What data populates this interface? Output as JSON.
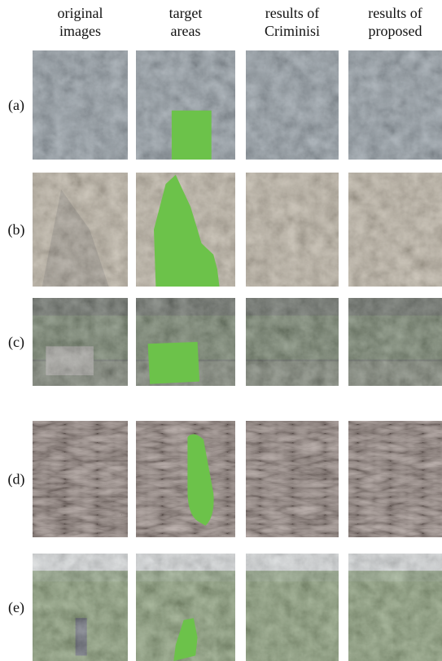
{
  "columns": [
    {
      "lines": [
        "original",
        "images"
      ]
    },
    {
      "lines": [
        "target",
        "areas"
      ]
    },
    {
      "lines": [
        "results of",
        "Criminisi"
      ]
    },
    {
      "lines": [
        "results of",
        "proposed"
      ]
    }
  ],
  "rows": [
    {
      "label": "(a)"
    },
    {
      "label": "(b)"
    },
    {
      "label": "(c)"
    },
    {
      "label": "(d)"
    },
    {
      "label": "(e)"
    }
  ]
}
